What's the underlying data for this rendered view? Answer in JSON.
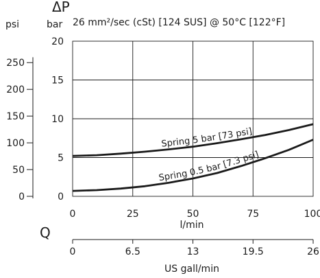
{
  "chart_data": {
    "type": "line",
    "title_symbol": "ΔP",
    "condition": "26 mm²/sec (cSt) [124 SUS] @ 50°C [122°F]",
    "y_left_unit": "psi",
    "y_right_unit": "bar",
    "x_symbol": "Q",
    "xlabel": "l/min",
    "x2label": "US gall/min",
    "xlim": [
      0,
      100
    ],
    "ylim": [
      0,
      20
    ],
    "grid": true,
    "x_ticks": [
      "0",
      "25",
      "50",
      "75",
      "100"
    ],
    "x2_ticks": [
      "0",
      "6.5",
      "13",
      "19.5",
      "26"
    ],
    "y_bar_ticks": [
      "0",
      "5",
      "10",
      "15",
      "20"
    ],
    "y_psi_ticks": [
      "0",
      "50",
      "100",
      "150",
      "200",
      "250"
    ],
    "series": [
      {
        "name": "Spring 5 bar [73 psi]",
        "x": [
          0,
          10,
          20,
          30,
          40,
          50,
          60,
          70,
          80,
          90,
          100
        ],
        "y": [
          5.2,
          5.3,
          5.5,
          5.75,
          6.05,
          6.4,
          6.85,
          7.35,
          7.9,
          8.55,
          9.3
        ]
      },
      {
        "name": "Spring 0.5 bar [7.3 psi]",
        "x": [
          0,
          10,
          20,
          30,
          40,
          50,
          60,
          70,
          80,
          90,
          100
        ],
        "y": [
          0.7,
          0.8,
          1.0,
          1.3,
          1.75,
          2.3,
          3.0,
          3.9,
          4.9,
          6.0,
          7.3
        ]
      }
    ]
  }
}
